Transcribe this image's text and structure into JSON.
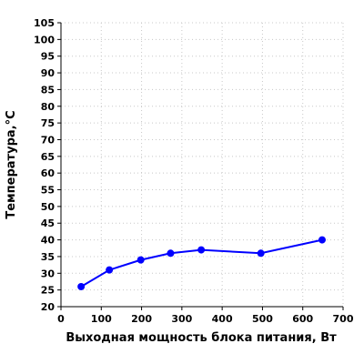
{
  "chart_data": {
    "type": "line",
    "title": "",
    "xlabel": "Выходная мощность блока питания, Вт",
    "ylabel": "Температура,°C",
    "xlim": [
      0,
      700
    ],
    "ylim": [
      20,
      105
    ],
    "x_ticks": [
      0,
      100,
      200,
      300,
      400,
      500,
      600,
      700
    ],
    "y_ticks": [
      20,
      25,
      30,
      35,
      40,
      45,
      50,
      55,
      60,
      65,
      70,
      75,
      80,
      85,
      90,
      95,
      100,
      105
    ],
    "grid": true,
    "legend": "none",
    "series": [
      {
        "color": "#0000ff",
        "points": [
          {
            "x": 50,
            "y": 26
          },
          {
            "x": 120,
            "y": 31
          },
          {
            "x": 198,
            "y": 34
          },
          {
            "x": 272,
            "y": 36
          },
          {
            "x": 348,
            "y": 37
          },
          {
            "x": 496,
            "y": 36
          },
          {
            "x": 648,
            "y": 40
          }
        ]
      }
    ]
  }
}
